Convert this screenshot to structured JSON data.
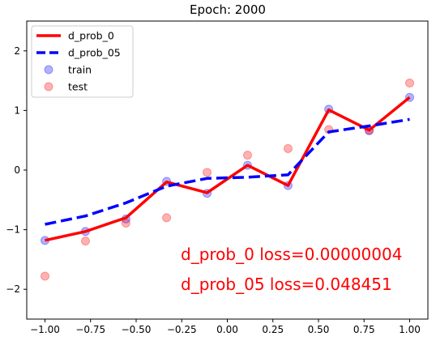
{
  "chart_data": {
    "type": "line",
    "title": "Epoch: 2000",
    "xlabel": "",
    "ylabel": "",
    "xlim": [
      -1.1,
      1.1
    ],
    "ylim": [
      -2.5,
      2.5
    ],
    "x_ticks": [
      -1.0,
      -0.75,
      -0.5,
      -0.25,
      0.0,
      0.25,
      0.5,
      0.75,
      1.0
    ],
    "x_tick_labels": [
      "−1.00",
      "−0.75",
      "−0.50",
      "−0.25",
      "0.00",
      "0.25",
      "0.50",
      "0.75",
      "1.00"
    ],
    "y_ticks": [
      -2,
      -1,
      0,
      1,
      2
    ],
    "y_tick_labels": [
      "−2",
      "−1",
      "0",
      "1",
      "2"
    ],
    "grid": false,
    "legend_position": "top-left",
    "series": [
      {
        "name": "d_prob_0",
        "kind": "line",
        "style": "solid",
        "color": "#ff0000",
        "x": [
          -1.0,
          -0.778,
          -0.556,
          -0.333,
          -0.111,
          0.111,
          0.333,
          0.556,
          0.778,
          1.0
        ],
        "y": [
          -1.18,
          -1.03,
          -0.8,
          -0.2,
          -0.38,
          0.08,
          -0.26,
          1.01,
          0.67,
          1.22
        ]
      },
      {
        "name": "d_prob_05",
        "kind": "line",
        "style": "dashed",
        "color": "#0000ff",
        "x": [
          -1.0,
          -0.778,
          -0.556,
          -0.333,
          -0.111,
          0.111,
          0.333,
          0.556,
          0.778,
          1.0
        ],
        "y": [
          -0.91,
          -0.77,
          -0.55,
          -0.27,
          -0.14,
          -0.12,
          -0.08,
          0.64,
          0.74,
          0.85
        ]
      },
      {
        "name": "train",
        "kind": "scatter",
        "color": "#0000ff",
        "x": [
          -1.0,
          -0.778,
          -0.556,
          -0.333,
          -0.111,
          0.111,
          0.333,
          0.556,
          0.778,
          1.0
        ],
        "y": [
          -1.18,
          -1.03,
          -0.82,
          -0.19,
          -0.39,
          0.08,
          -0.26,
          1.02,
          0.66,
          1.22
        ]
      },
      {
        "name": "test",
        "kind": "scatter",
        "color": "#ff0000",
        "x": [
          -1.0,
          -0.778,
          -0.556,
          -0.333,
          -0.111,
          0.111,
          0.333,
          0.556,
          0.778,
          1.0
        ],
        "y": [
          -1.78,
          -1.19,
          -0.89,
          -0.8,
          -0.04,
          0.25,
          0.36,
          0.68,
          0.67,
          1.46
        ]
      }
    ],
    "annotations": [
      {
        "text": "d_prob_0 loss=0.00000004",
        "color": "#ff0000"
      },
      {
        "text": "d_prob_05 loss=0.048451",
        "color": "#ff0000"
      }
    ]
  }
}
